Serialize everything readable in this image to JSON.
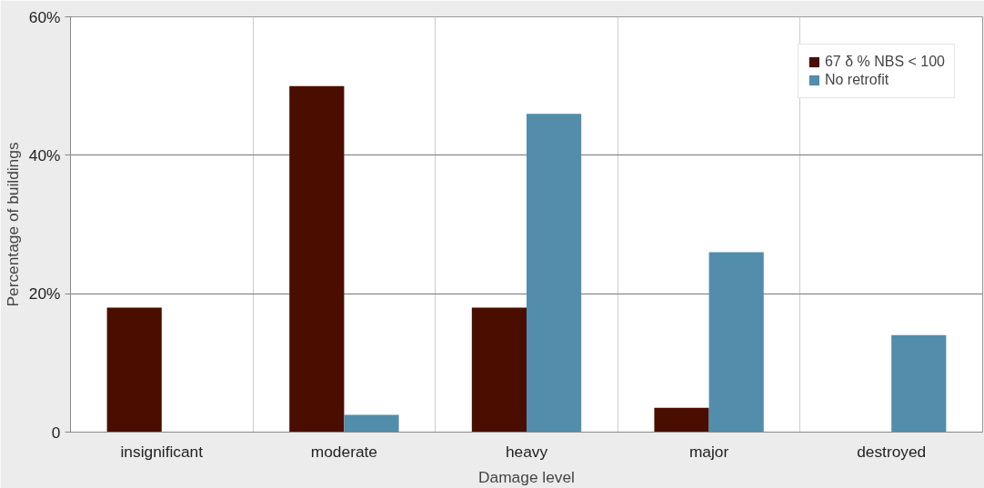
{
  "chart_data": {
    "type": "bar",
    "xlabel": "Damage level",
    "ylabel": "Percentage of buildings",
    "categories": [
      "insignificant",
      "moderate",
      "heavy",
      "major",
      "destroyed"
    ],
    "series": [
      {
        "name": "67 δ % NBS < 100",
        "color": "#4a0e00",
        "values": [
          18,
          50,
          18,
          3.5,
          0
        ]
      },
      {
        "name": "No retrofit",
        "color": "#528dab",
        "values": [
          0,
          2.5,
          46,
          26,
          14
        ]
      }
    ],
    "ylim": [
      0,
      60
    ],
    "yticks": [
      0,
      {
        "value": 20,
        "label": "20%"
      },
      {
        "value": 40,
        "label": "40%"
      },
      {
        "value": 60,
        "label": "60%"
      }
    ],
    "grid": true,
    "legend": "top right"
  }
}
